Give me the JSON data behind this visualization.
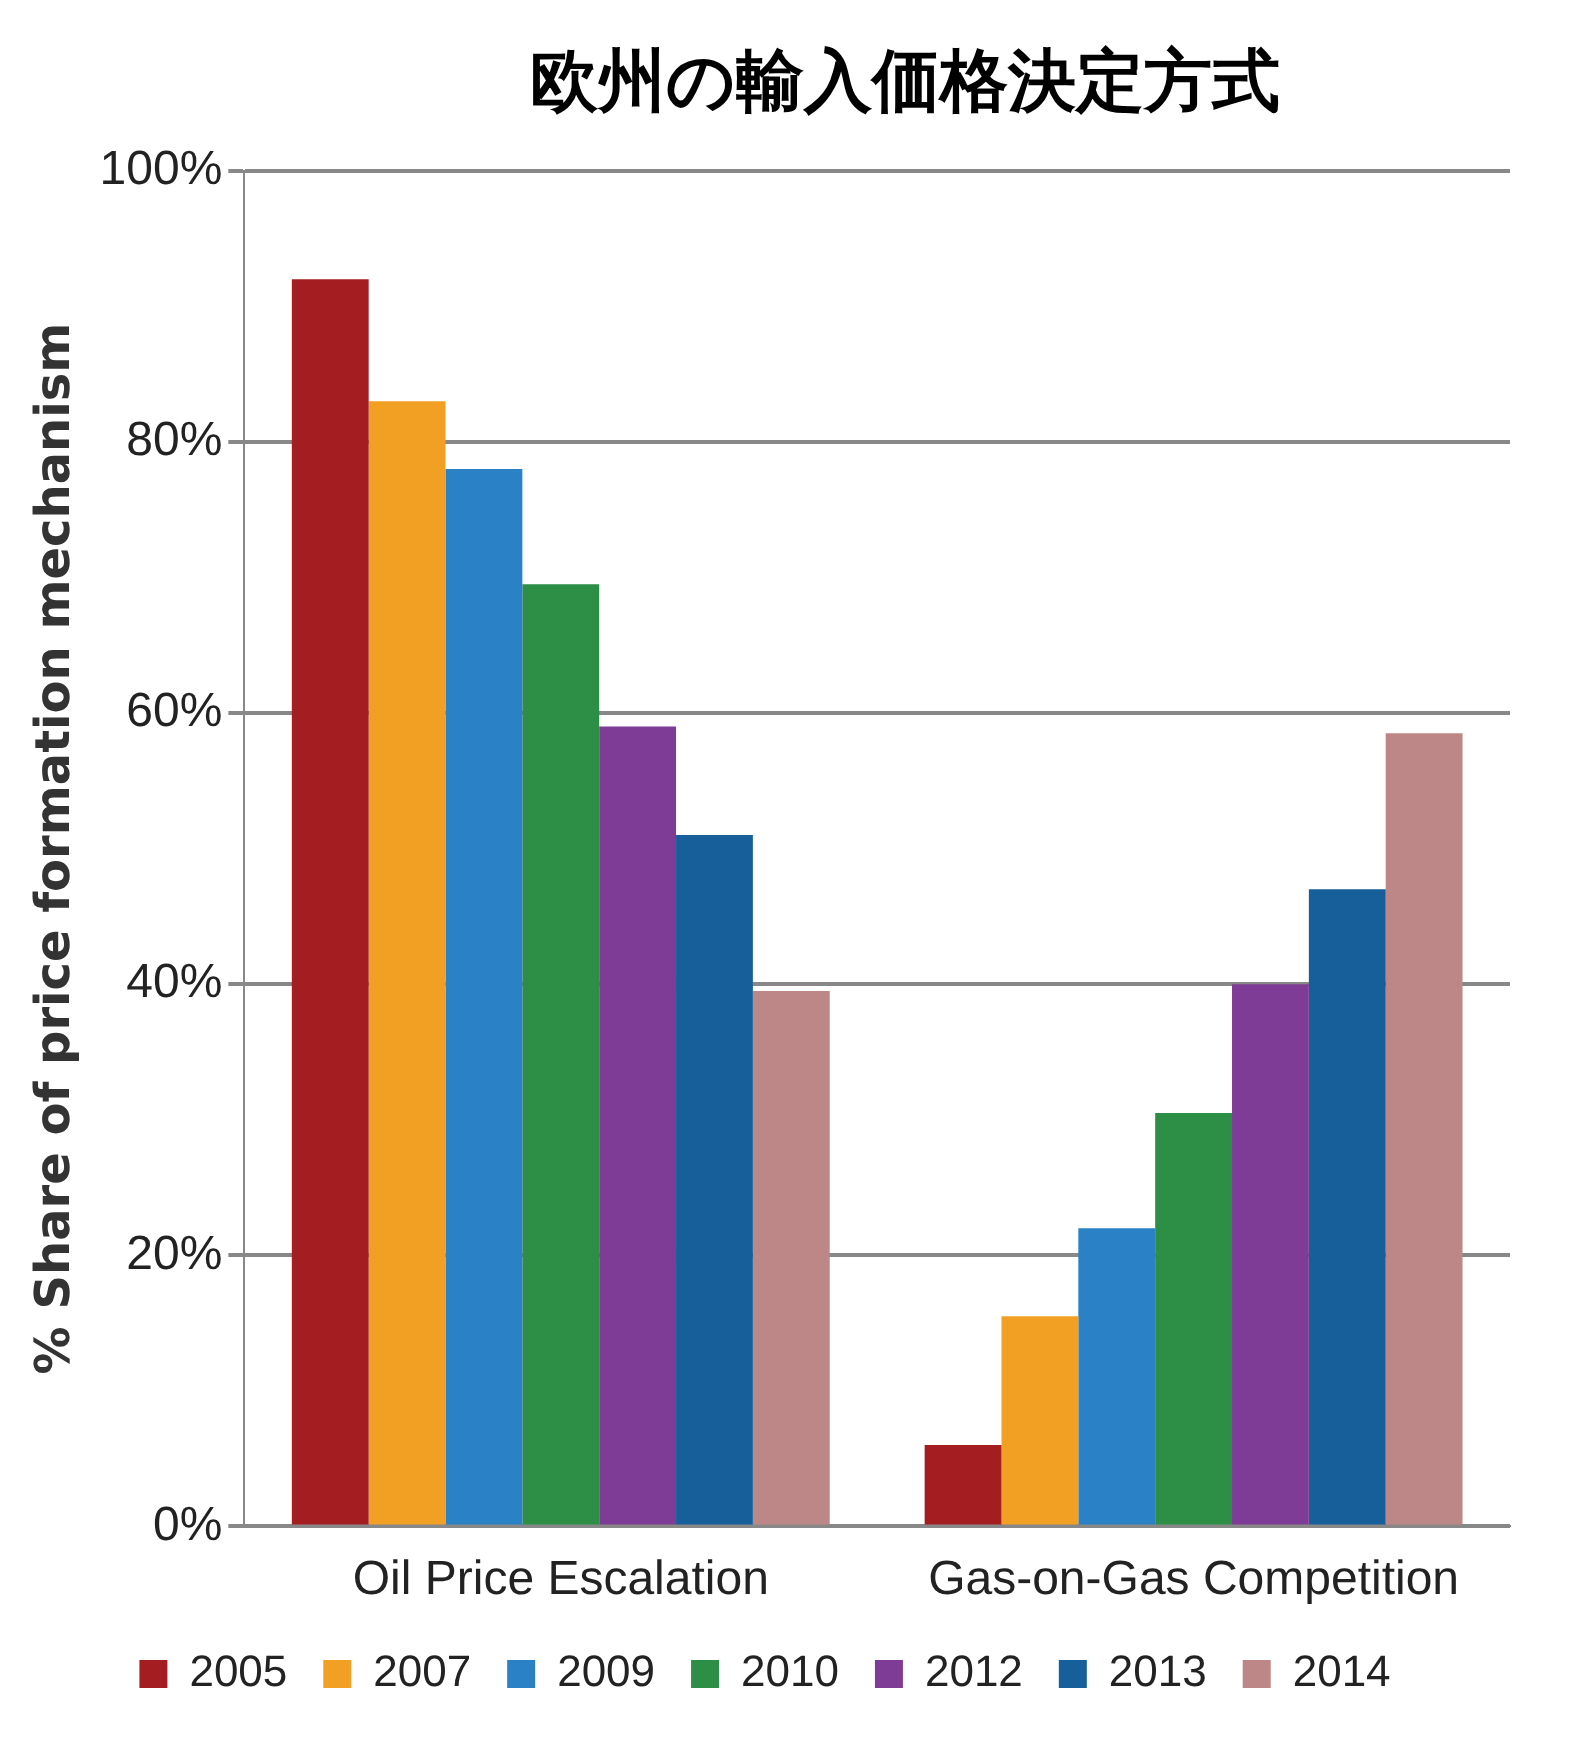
{
  "chart_data": {
    "type": "bar",
    "title": "欧州の輸入価格決定方式",
    "ylabel": "% Share of price formation mechanism",
    "categories": [
      "Oil Price Escalation",
      "Gas-on-Gas Competition"
    ],
    "series": [
      {
        "name": "2005",
        "color": "#a31d21",
        "values": [
          92,
          6
        ]
      },
      {
        "name": "2007",
        "color": "#f2a023",
        "values": [
          83,
          15.5
        ]
      },
      {
        "name": "2009",
        "color": "#2a81c5",
        "values": [
          78,
          22
        ]
      },
      {
        "name": "2010",
        "color": "#2d8e45",
        "values": [
          69.5,
          30.5
        ]
      },
      {
        "name": "2012",
        "color": "#7f3c96",
        "values": [
          59,
          40
        ]
      },
      {
        "name": "2013",
        "color": "#175f9a",
        "values": [
          51,
          47
        ]
      },
      {
        "name": "2014",
        "color": "#bd8787",
        "values": [
          39.5,
          58.5
        ]
      }
    ],
    "ylim": [
      0,
      100
    ],
    "yticks": [
      {
        "value": 0,
        "label": "0%"
      },
      {
        "value": 20,
        "label": "20%"
      },
      {
        "value": 40,
        "label": "40%"
      },
      {
        "value": 60,
        "label": "60%"
      },
      {
        "value": 80,
        "label": "80%"
      },
      {
        "value": 100,
        "label": "100%"
      }
    ],
    "grid": "y",
    "legend": "bottom"
  }
}
